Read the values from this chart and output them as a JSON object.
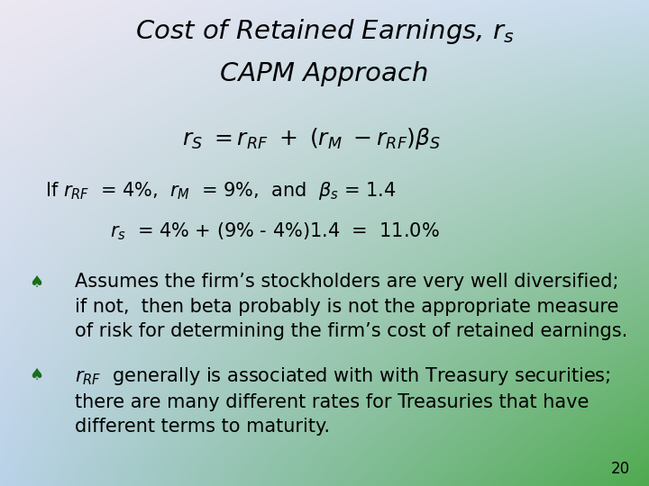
{
  "title_line1": "Cost of Retained Earnings, $r_s$",
  "title_line2": "CAPM Approach",
  "page_number": "20",
  "bg_tl": [
    237,
    232,
    242
  ],
  "bg_tr": [
    200,
    220,
    238
  ],
  "bg_bl": [
    185,
    210,
    232
  ],
  "bg_br": [
    80,
    170,
    80
  ],
  "bullet_color": "#1a6e1a",
  "text_color": "#000000",
  "title_color": "#000000",
  "title_fontsize": 21,
  "formula_fontsize": 18,
  "body_fontsize": 15,
  "bullet_fontsize": 15,
  "page_fontsize": 12
}
